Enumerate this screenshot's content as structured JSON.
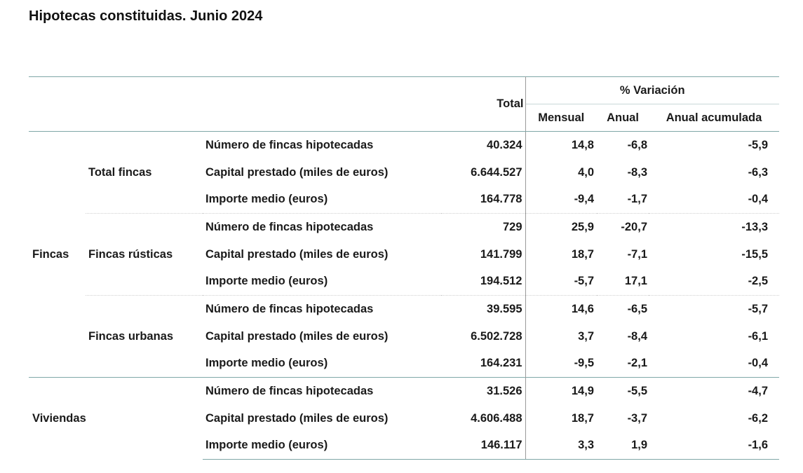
{
  "title": "Hipotecas constituidas. Junio 2024",
  "header": {
    "total": "Total",
    "variacion": "% Variación",
    "mensual": "Mensual",
    "anual": "Anual",
    "anual_acumulada": "Anual acumulada"
  },
  "indicators": {
    "numero": "Número de fincas hipotecadas",
    "capital": "Capital prestado (miles de euros)",
    "importe": "Importe medio (euros)"
  },
  "groups": {
    "fincas": "Fincas",
    "viviendas": "Viviendas"
  },
  "subgroups": {
    "total_fincas": "Total fincas",
    "rusticas": "Fincas rústicas",
    "urbanas": "Fincas urbanas"
  },
  "rows": [
    {
      "total": "40.324",
      "mensual": "14,8",
      "anual": "-6,8",
      "acumulada": "-5,9"
    },
    {
      "total": "6.644.527",
      "mensual": "4,0",
      "anual": "-8,3",
      "acumulada": "-6,3"
    },
    {
      "total": "164.778",
      "mensual": "-9,4",
      "anual": "-1,7",
      "acumulada": "-0,4"
    },
    {
      "total": "729",
      "mensual": "25,9",
      "anual": "-20,7",
      "acumulada": "-13,3"
    },
    {
      "total": "141.799",
      "mensual": "18,7",
      "anual": "-7,1",
      "acumulada": "-15,5"
    },
    {
      "total": "194.512",
      "mensual": "-5,7",
      "anual": "17,1",
      "acumulada": "-2,5"
    },
    {
      "total": "39.595",
      "mensual": "14,6",
      "anual": "-6,5",
      "acumulada": "-5,7"
    },
    {
      "total": "6.502.728",
      "mensual": "3,7",
      "anual": "-8,4",
      "acumulada": "-6,1"
    },
    {
      "total": "164.231",
      "mensual": "-9,5",
      "anual": "-2,1",
      "acumulada": "-0,4"
    },
    {
      "total": "31.526",
      "mensual": "14,9",
      "anual": "-5,5",
      "acumulada": "-4,7"
    },
    {
      "total": "4.606.488",
      "mensual": "18,7",
      "anual": "-3,7",
      "acumulada": "-6,2"
    },
    {
      "total": "146.117",
      "mensual": "3,3",
      "anual": "1,9",
      "acumulada": "-1,6"
    }
  ]
}
